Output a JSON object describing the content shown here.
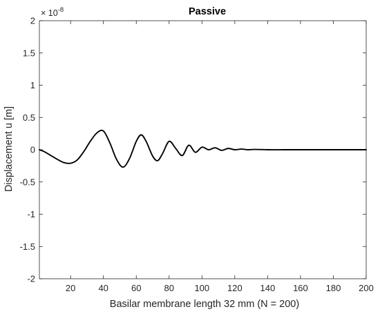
{
  "chart_data": {
    "type": "line",
    "title": "Passive",
    "xlabel": "Basilar membrane length 32 mm  (N = 200)",
    "ylabel": "Displacement u [m]",
    "y_multiplier_label": "× 10",
    "y_multiplier_exponent": "-8",
    "xlim": [
      1,
      200
    ],
    "ylim": [
      -2,
      2
    ],
    "x_ticks": [
      20,
      40,
      60,
      80,
      100,
      120,
      140,
      160,
      180,
      200
    ],
    "y_ticks": [
      -2,
      -1.5,
      -1,
      -0.5,
      0,
      0.5,
      1,
      1.5,
      2
    ],
    "x_tick_labels": [
      "20",
      "40",
      "60",
      "80",
      "100",
      "120",
      "140",
      "160",
      "180",
      "200"
    ],
    "y_tick_labels": [
      "-2",
      "-1.5",
      "-1",
      "-0.5",
      "0",
      "0.5",
      "1",
      "1.5",
      "2"
    ],
    "grid": false,
    "line_color": "#000000",
    "series": [
      {
        "x": [
          1,
          4,
          8,
          12,
          16,
          20,
          24,
          28,
          32,
          36,
          40,
          44,
          48,
          52,
          56,
          60,
          63,
          66,
          70,
          73,
          76,
          80,
          84,
          88,
          92,
          96,
          100,
          104,
          108,
          112,
          116,
          120,
          124,
          128,
          132,
          140,
          150,
          160,
          180,
          200
        ],
        "y": [
          0.0,
          -0.03,
          -0.09,
          -0.15,
          -0.2,
          -0.21,
          -0.16,
          -0.03,
          0.13,
          0.26,
          0.29,
          0.1,
          -0.15,
          -0.27,
          -0.13,
          0.13,
          0.23,
          0.13,
          -0.1,
          -0.17,
          -0.06,
          0.13,
          0.02,
          -0.09,
          0.07,
          -0.04,
          0.04,
          0.0,
          0.03,
          -0.01,
          0.02,
          0.0,
          0.01,
          0.0,
          0.005,
          0.0,
          0.0,
          0.0,
          0.0,
          0.0
        ]
      }
    ]
  }
}
